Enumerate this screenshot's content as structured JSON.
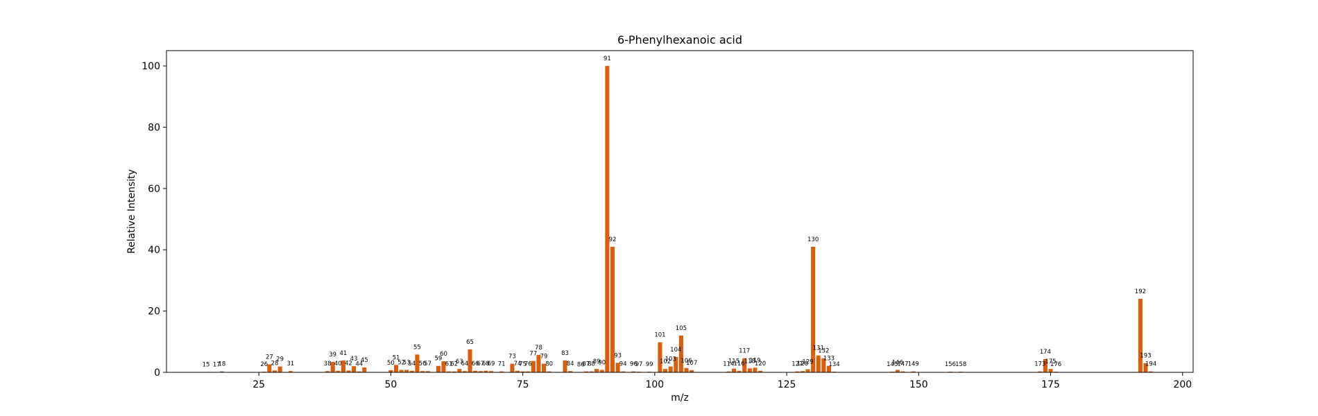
{
  "chart_data": {
    "type": "bar",
    "title": "6-Phenylhexanoic acid",
    "xlabel": "m/z",
    "ylabel": "Relative Intensity",
    "xlim": [
      7.5,
      202
    ],
    "ylim": [
      0,
      105
    ],
    "xticks": [
      25,
      50,
      75,
      100,
      125,
      150,
      175,
      200
    ],
    "yticks": [
      0,
      20,
      40,
      60,
      80,
      100
    ],
    "bar_color": "#d95f0e",
    "grid": false,
    "legend": "none",
    "peaks": [
      {
        "x": 15,
        "y": 0.1
      },
      {
        "x": 17,
        "y": 0.1
      },
      {
        "x": 18,
        "y": 0.3
      },
      {
        "x": 26,
        "y": 0.2
      },
      {
        "x": 27,
        "y": 2.6
      },
      {
        "x": 28,
        "y": 0.6
      },
      {
        "x": 29,
        "y": 1.9
      },
      {
        "x": 31,
        "y": 0.4
      },
      {
        "x": 38,
        "y": 0.4
      },
      {
        "x": 39,
        "y": 3.4
      },
      {
        "x": 40,
        "y": 0.5
      },
      {
        "x": 41,
        "y": 3.9
      },
      {
        "x": 42,
        "y": 0.6
      },
      {
        "x": 43,
        "y": 2.0
      },
      {
        "x": 44,
        "y": 0.3
      },
      {
        "x": 45,
        "y": 1.6
      },
      {
        "x": 50,
        "y": 0.7
      },
      {
        "x": 51,
        "y": 2.4
      },
      {
        "x": 52,
        "y": 0.8
      },
      {
        "x": 53,
        "y": 0.8
      },
      {
        "x": 54,
        "y": 0.5
      },
      {
        "x": 55,
        "y": 5.8
      },
      {
        "x": 56,
        "y": 0.4
      },
      {
        "x": 57,
        "y": 0.4
      },
      {
        "x": 59,
        "y": 2.1
      },
      {
        "x": 60,
        "y": 3.6
      },
      {
        "x": 61,
        "y": 0.3
      },
      {
        "x": 62,
        "y": 0.3
      },
      {
        "x": 63,
        "y": 1.1
      },
      {
        "x": 64,
        "y": 0.4
      },
      {
        "x": 65,
        "y": 7.5
      },
      {
        "x": 66,
        "y": 0.5
      },
      {
        "x": 67,
        "y": 0.4
      },
      {
        "x": 68,
        "y": 0.5
      },
      {
        "x": 69,
        "y": 0.4
      },
      {
        "x": 71,
        "y": 0.3
      },
      {
        "x": 73,
        "y": 2.8
      },
      {
        "x": 74,
        "y": 0.5
      },
      {
        "x": 75,
        "y": 0.3
      },
      {
        "x": 76,
        "y": 0.3
      },
      {
        "x": 77,
        "y": 3.7
      },
      {
        "x": 78,
        "y": 5.7
      },
      {
        "x": 79,
        "y": 2.8
      },
      {
        "x": 80,
        "y": 0.3
      },
      {
        "x": 83,
        "y": 3.9
      },
      {
        "x": 84,
        "y": 0.4
      },
      {
        "x": 86,
        "y": 0.1
      },
      {
        "x": 87,
        "y": 0.3
      },
      {
        "x": 88,
        "y": 0.3
      },
      {
        "x": 89,
        "y": 1.1
      },
      {
        "x": 90,
        "y": 0.8
      },
      {
        "x": 91,
        "y": 100
      },
      {
        "x": 92,
        "y": 41
      },
      {
        "x": 93,
        "y": 3.1
      },
      {
        "x": 94,
        "y": 0.3
      },
      {
        "x": 96,
        "y": 0.3
      },
      {
        "x": 97,
        "y": 0.2
      },
      {
        "x": 99,
        "y": 0.2
      },
      {
        "x": 101,
        "y": 9.8
      },
      {
        "x": 102,
        "y": 1.1
      },
      {
        "x": 103,
        "y": 1.9
      },
      {
        "x": 104,
        "y": 5.0
      },
      {
        "x": 105,
        "y": 12
      },
      {
        "x": 106,
        "y": 1.4
      },
      {
        "x": 107,
        "y": 0.7
      },
      {
        "x": 114,
        "y": 0.3
      },
      {
        "x": 115,
        "y": 1.2
      },
      {
        "x": 116,
        "y": 0.5
      },
      {
        "x": 117,
        "y": 4.6
      },
      {
        "x": 118,
        "y": 1.3
      },
      {
        "x": 119,
        "y": 1.5
      },
      {
        "x": 120,
        "y": 0.5
      },
      {
        "x": 127,
        "y": 0.3
      },
      {
        "x": 128,
        "y": 0.4
      },
      {
        "x": 129,
        "y": 1.0
      },
      {
        "x": 130,
        "y": 41
      },
      {
        "x": 131,
        "y": 5.5
      },
      {
        "x": 132,
        "y": 4.6
      },
      {
        "x": 133,
        "y": 2.1
      },
      {
        "x": 134,
        "y": 0.2
      },
      {
        "x": 145,
        "y": 0.2
      },
      {
        "x": 146,
        "y": 0.8
      },
      {
        "x": 147,
        "y": 0.3
      },
      {
        "x": 149,
        "y": 0.3
      },
      {
        "x": 156,
        "y": 0.2
      },
      {
        "x": 158,
        "y": 0.2
      },
      {
        "x": 173,
        "y": 0.3
      },
      {
        "x": 174,
        "y": 4.3
      },
      {
        "x": 175,
        "y": 1.1
      },
      {
        "x": 176,
        "y": 0.2
      },
      {
        "x": 192,
        "y": 24
      },
      {
        "x": 193,
        "y": 3.0
      },
      {
        "x": 194,
        "y": 0.3
      }
    ]
  }
}
